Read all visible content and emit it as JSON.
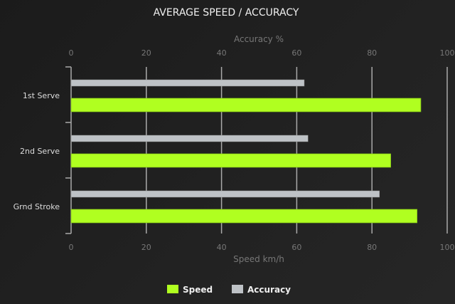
{
  "chart_data": {
    "type": "bar",
    "orientation": "horizontal",
    "title": "AVERAGE SPEED / ACCURACY",
    "top_axis_label": "Accuracy %",
    "bottom_axis_label": "Speed km/h",
    "xlim": [
      0,
      100
    ],
    "ticks": [
      "0",
      "20",
      "40",
      "60",
      "80",
      "100"
    ],
    "grid": true,
    "legend_position": "bottom",
    "categories": [
      "1st Serve",
      "2nd Serve",
      "Grnd Stroke"
    ],
    "series": [
      {
        "name": "Speed",
        "color": "#b0ff20",
        "values": [
          93,
          85,
          92
        ]
      },
      {
        "name": "Accuracy",
        "color": "#bec2c6",
        "values": [
          62,
          63,
          82
        ]
      }
    ]
  }
}
